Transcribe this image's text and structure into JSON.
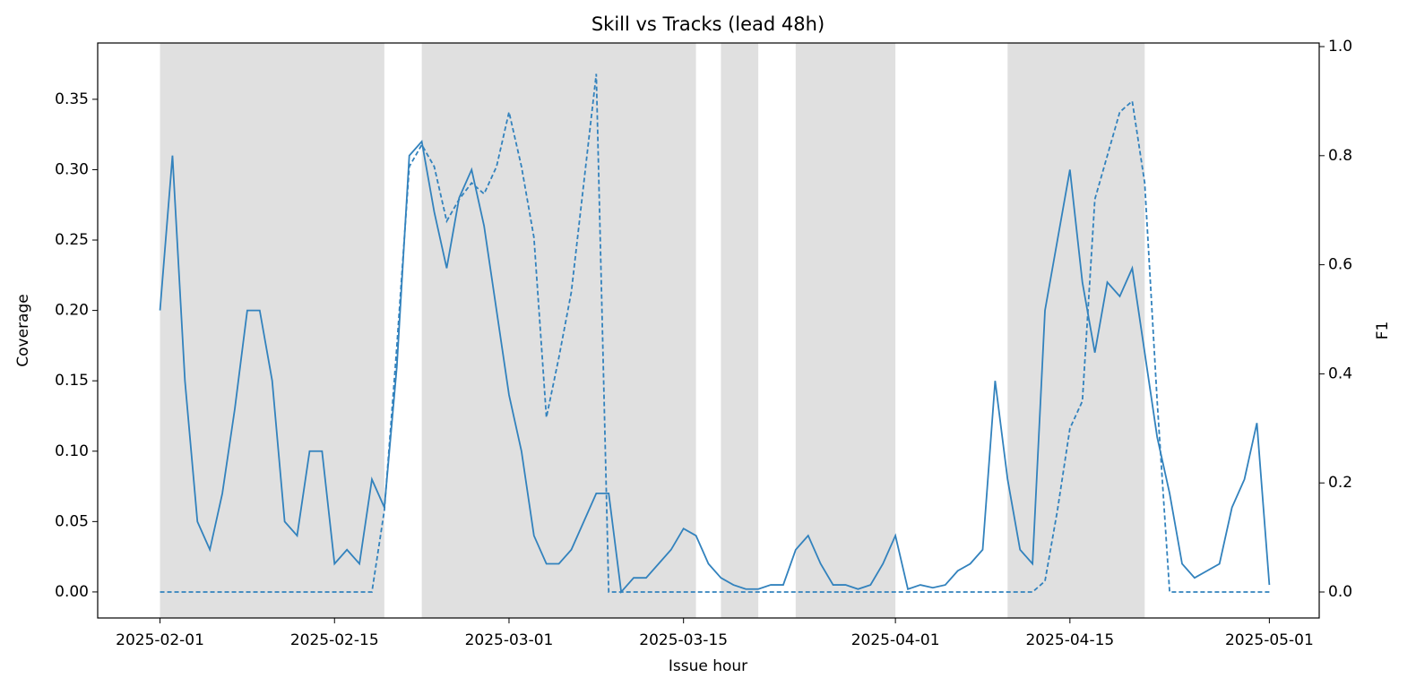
{
  "chart_data": {
    "type": "line",
    "title": "Skill vs Tracks (lead 48h)",
    "xlabel": "Issue hour",
    "ylabel": "Coverage",
    "y2label": "F1",
    "x": [
      "2025-02-01",
      "2025-02-02",
      "2025-02-03",
      "2025-02-04",
      "2025-02-05",
      "2025-02-06",
      "2025-02-07",
      "2025-02-08",
      "2025-02-09",
      "2025-02-10",
      "2025-02-11",
      "2025-02-12",
      "2025-02-13",
      "2025-02-14",
      "2025-02-15",
      "2025-02-16",
      "2025-02-17",
      "2025-02-18",
      "2025-02-19",
      "2025-02-20",
      "2025-02-21",
      "2025-02-22",
      "2025-02-23",
      "2025-02-24",
      "2025-02-25",
      "2025-02-26",
      "2025-02-27",
      "2025-02-28",
      "2025-03-01",
      "2025-03-02",
      "2025-03-03",
      "2025-03-04",
      "2025-03-05",
      "2025-03-06",
      "2025-03-07",
      "2025-03-08",
      "2025-03-09",
      "2025-03-10",
      "2025-03-11",
      "2025-03-12",
      "2025-03-13",
      "2025-03-14",
      "2025-03-15",
      "2025-03-16",
      "2025-03-17",
      "2025-03-18",
      "2025-03-19",
      "2025-03-20",
      "2025-03-21",
      "2025-03-22",
      "2025-03-23",
      "2025-03-24",
      "2025-03-25",
      "2025-03-26",
      "2025-03-27",
      "2025-03-28",
      "2025-03-29",
      "2025-03-30",
      "2025-03-31",
      "2025-04-01",
      "2025-04-02",
      "2025-04-03",
      "2025-04-04",
      "2025-04-05",
      "2025-04-06",
      "2025-04-07",
      "2025-04-08",
      "2025-04-09",
      "2025-04-10",
      "2025-04-11",
      "2025-04-12",
      "2025-04-13",
      "2025-04-14",
      "2025-04-15",
      "2025-04-16",
      "2025-04-17",
      "2025-04-18",
      "2025-04-19",
      "2025-04-20",
      "2025-04-21",
      "2025-04-22",
      "2025-04-23",
      "2025-04-24",
      "2025-04-25",
      "2025-04-26",
      "2025-04-27",
      "2025-04-28",
      "2025-04-29",
      "2025-04-30",
      "2025-05-01"
    ],
    "series": [
      {
        "color": "#3282bd",
        "linestyle": "solid",
        "axis": "y",
        "values": [
          0.2,
          0.31,
          0.15,
          0.05,
          0.03,
          0.07,
          0.13,
          0.2,
          0.2,
          0.15,
          0.05,
          0.04,
          0.1,
          0.1,
          0.02,
          0.03,
          0.02,
          0.08,
          0.06,
          0.16,
          0.31,
          0.32,
          0.27,
          0.23,
          0.28,
          0.3,
          0.26,
          0.2,
          0.14,
          0.1,
          0.04,
          0.02,
          0.02,
          0.03,
          0.05,
          0.07,
          0.07,
          0.0,
          0.01,
          0.01,
          0.02,
          0.03,
          0.045,
          0.04,
          0.02,
          0.01,
          0.005,
          0.002,
          0.002,
          0.005,
          0.005,
          0.03,
          0.04,
          0.02,
          0.005,
          0.005,
          0.002,
          0.005,
          0.02,
          0.04,
          0.002,
          0.005,
          0.003,
          0.005,
          0.015,
          0.02,
          0.03,
          0.15,
          0.08,
          0.03,
          0.02,
          0.2,
          0.25,
          0.3,
          0.22,
          0.17,
          0.22,
          0.21,
          0.23,
          0.17,
          0.11,
          0.07,
          0.02,
          0.01,
          0.015,
          0.02,
          0.06,
          0.08,
          0.12,
          0.005
        ]
      },
      {
        "color": "#3282bd",
        "linestyle": "dashed",
        "axis": "y2",
        "values": [
          0,
          0,
          0,
          0,
          0,
          0,
          0,
          0,
          0,
          0,
          0,
          0,
          0,
          0,
          0,
          0,
          0,
          0,
          0.15,
          0.45,
          0.78,
          0.82,
          0.78,
          0.68,
          0.72,
          0.75,
          0.73,
          0.78,
          0.88,
          0.78,
          0.65,
          0.32,
          0.43,
          0.55,
          0.75,
          0.95,
          0,
          0,
          0,
          0,
          0,
          0,
          0,
          0,
          0,
          0,
          0,
          0,
          0,
          0,
          0,
          0,
          0,
          0,
          0,
          0,
          0,
          0,
          0,
          0,
          0,
          0,
          0,
          0,
          0,
          0,
          0,
          0,
          0,
          0,
          0,
          0.02,
          0.15,
          0.3,
          0.35,
          0.72,
          0.8,
          0.88,
          0.9,
          0.75,
          0.35,
          0,
          0,
          0,
          0,
          0,
          0,
          0,
          0,
          0
        ]
      }
    ],
    "spans": [
      [
        "2025-02-01",
        "2025-02-19"
      ],
      [
        "2025-02-22",
        "2025-03-16"
      ],
      [
        "2025-03-18",
        "2025-03-21"
      ],
      [
        "2025-03-24",
        "2025-04-01"
      ],
      [
        "2025-04-10",
        "2025-04-21"
      ]
    ],
    "span_color": "#e0e0e0",
    "xlim": [
      "2025-01-27",
      "2025-05-05"
    ],
    "xticks": [
      "2025-02-01",
      "2025-02-15",
      "2025-03-01",
      "2025-03-15",
      "2025-04-01",
      "2025-04-15",
      "2025-05-01"
    ],
    "ylim": [
      -0.0185,
      0.39
    ],
    "yticks": [
      {
        "value": 0,
        "label": "0.00"
      },
      {
        "value": 0.05,
        "label": "0.05"
      },
      {
        "value": 0.1,
        "label": "0.10"
      },
      {
        "value": 0.15,
        "label": "0.15"
      },
      {
        "value": 0.2,
        "label": "0.20"
      },
      {
        "value": 0.25,
        "label": "0.25"
      },
      {
        "value": 0.3,
        "label": "0.30"
      },
      {
        "value": 0.35,
        "label": "0.35"
      }
    ],
    "y2lim": [
      -0.0476,
      1.0066
    ],
    "y2ticks": [
      {
        "value": 0,
        "label": "0.0"
      },
      {
        "value": 0.2,
        "label": "0.2"
      },
      {
        "value": 0.4,
        "label": "0.4"
      },
      {
        "value": 0.6,
        "label": "0.6"
      },
      {
        "value": 0.8,
        "label": "0.8"
      },
      {
        "value": 1,
        "label": "1.0"
      }
    ],
    "grid": false
  }
}
